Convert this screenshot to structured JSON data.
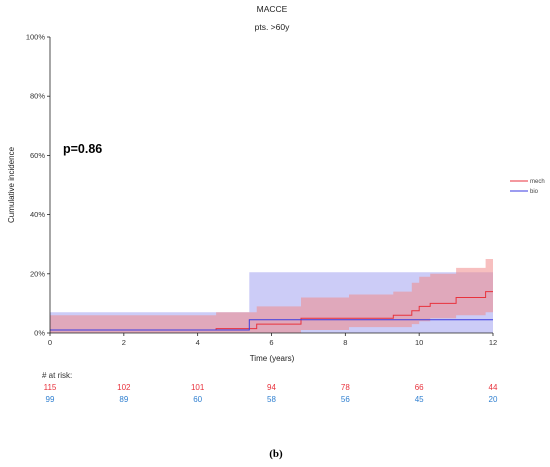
{
  "chart_data": {
    "type": "line",
    "step": true,
    "title": "MACCE",
    "subtitle": "pts. >60y",
    "xlabel": "Time (years)",
    "ylabel": "Cumulative incidence",
    "xlim": [
      0,
      12
    ],
    "ylim": [
      0,
      1
    ],
    "x_ticks": [
      0,
      2,
      4,
      6,
      8,
      10,
      12
    ],
    "y_ticks": [
      0,
      0.2,
      0.4,
      0.6,
      0.8,
      1.0
    ],
    "y_tick_labels": [
      "0%",
      "20%",
      "40%",
      "60%",
      "80%",
      "100%"
    ],
    "grid": false,
    "legend_position": "right",
    "annotation": "p=0.86",
    "series": [
      {
        "name": "mech",
        "color": "#e8323c",
        "band_color": "#f08a8a",
        "x": [
          0,
          4.5,
          5.6,
          6.8,
          8.1,
          9.3,
          9.8,
          10.0,
          10.3,
          10.5,
          11.0,
          11.8,
          12.0
        ],
        "y": [
          0.01,
          0.015,
          0.03,
          0.05,
          0.05,
          0.06,
          0.075,
          0.09,
          0.1,
          0.1,
          0.12,
          0.14,
          0.14
        ],
        "lower": [
          0.0,
          0.0,
          0.0,
          0.01,
          0.02,
          0.02,
          0.03,
          0.04,
          0.05,
          0.05,
          0.06,
          0.07,
          0.07
        ],
        "upper": [
          0.06,
          0.07,
          0.09,
          0.12,
          0.13,
          0.14,
          0.17,
          0.19,
          0.2,
          0.2,
          0.22,
          0.25,
          0.25
        ]
      },
      {
        "name": "bio",
        "color": "#3a3ae0",
        "band_color": "#9a9af0",
        "x": [
          0,
          5.4,
          12.0
        ],
        "y": [
          0.01,
          0.045,
          0.045
        ],
        "lower": [
          0.0,
          0.0,
          0.0
        ],
        "upper": [
          0.07,
          0.205,
          0.205
        ]
      }
    ],
    "at_risk": {
      "label": "# at risk:",
      "times": [
        0,
        2,
        4,
        6,
        8,
        10,
        12
      ],
      "rows": [
        {
          "name": "mech",
          "color": "#e8323c",
          "values": [
            "115",
            "102",
            "101",
            "94",
            "78",
            "66",
            "44"
          ]
        },
        {
          "name": "bio",
          "color": "#2f7fd0",
          "values": [
            "99",
            "89",
            "60",
            "58",
            "56",
            "45",
            "20"
          ]
        }
      ]
    }
  },
  "caption": "(b)"
}
